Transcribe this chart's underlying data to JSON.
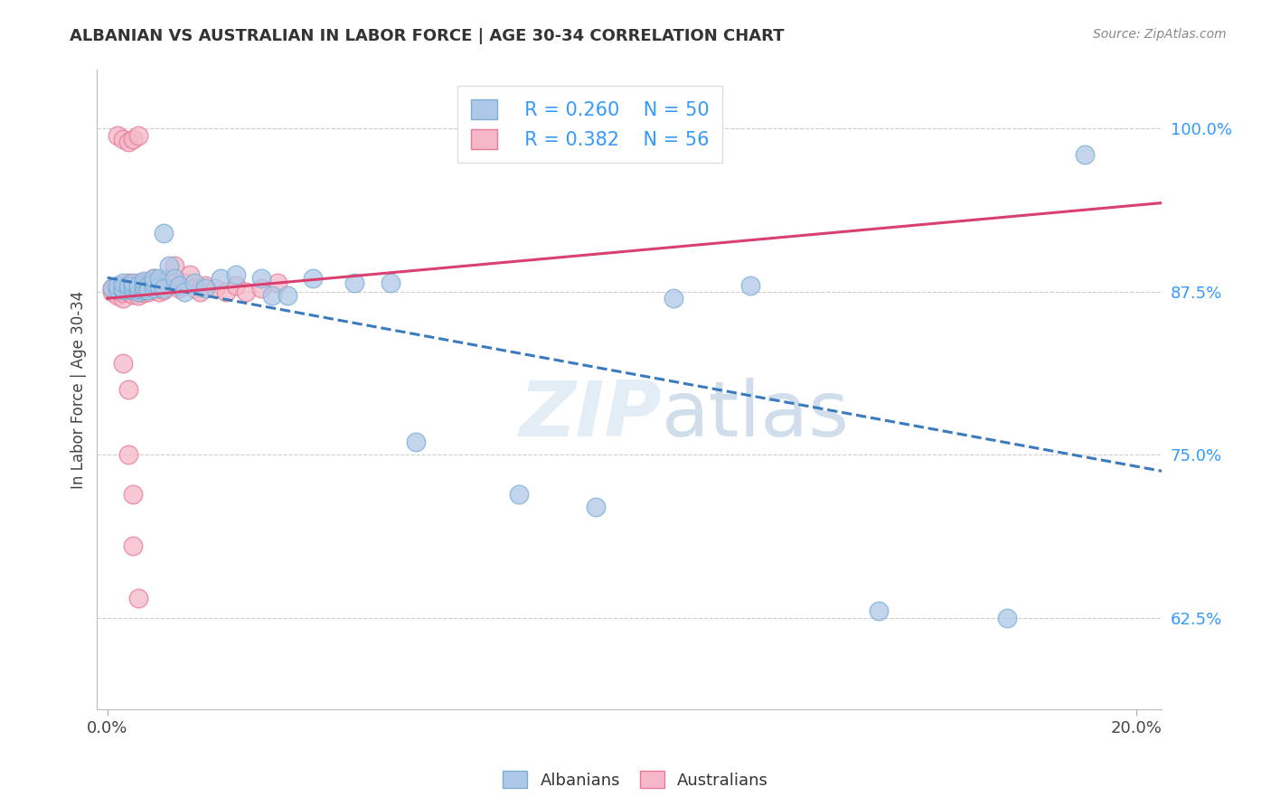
{
  "title": "ALBANIAN VS AUSTRALIAN IN LABOR FORCE | AGE 30-34 CORRELATION CHART",
  "source": "Source: ZipAtlas.com",
  "ylabel": "In Labor Force | Age 30-34",
  "ytick_labels": [
    "62.5%",
    "75.0%",
    "87.5%",
    "100.0%"
  ],
  "ytick_values": [
    0.625,
    0.75,
    0.875,
    1.0
  ],
  "xtick_labels": [
    "0.0%",
    "20.0%"
  ],
  "xtick_values": [
    0.0,
    0.2
  ],
  "xlim": [
    -0.002,
    0.205
  ],
  "ylim": [
    0.555,
    1.045
  ],
  "legend_blue_R": "R = 0.260",
  "legend_blue_N": "N = 50",
  "legend_pink_R": "R = 0.382",
  "legend_pink_N": "N = 56",
  "blue_scatter_color": "#aec8e8",
  "blue_edge_color": "#7aafd4",
  "pink_scatter_color": "#f5b8c8",
  "pink_edge_color": "#e87898",
  "blue_line_color": "#3a7abf",
  "pink_line_color": "#d94070",
  "albanians_x": [
    0.001,
    0.002,
    0.002,
    0.003,
    0.003,
    0.003,
    0.004,
    0.004,
    0.005,
    0.005,
    0.005,
    0.006,
    0.006,
    0.006,
    0.007,
    0.007,
    0.007,
    0.007,
    0.008,
    0.008,
    0.008,
    0.009,
    0.009,
    0.009,
    0.01,
    0.01,
    0.011,
    0.011,
    0.012,
    0.013,
    0.014,
    0.015,
    0.017,
    0.019,
    0.022,
    0.025,
    0.03,
    0.032,
    0.035,
    0.04,
    0.048,
    0.055,
    0.06,
    0.08,
    0.095,
    0.11,
    0.125,
    0.15,
    0.175,
    0.19
  ],
  "albanians_y": [
    0.878,
    0.877,
    0.88,
    0.876,
    0.878,
    0.882,
    0.877,
    0.88,
    0.876,
    0.879,
    0.882,
    0.875,
    0.877,
    0.88,
    0.876,
    0.878,
    0.88,
    0.883,
    0.877,
    0.88,
    0.876,
    0.878,
    0.882,
    0.885,
    0.879,
    0.885,
    0.92,
    0.878,
    0.895,
    0.885,
    0.88,
    0.875,
    0.882,
    0.878,
    0.885,
    0.888,
    0.885,
    0.872,
    0.872,
    0.885,
    0.882,
    0.882,
    0.76,
    0.72,
    0.71,
    0.87,
    0.88,
    0.63,
    0.625,
    0.98
  ],
  "australians_x": [
    0.001,
    0.001,
    0.002,
    0.002,
    0.003,
    0.003,
    0.003,
    0.004,
    0.004,
    0.004,
    0.005,
    0.005,
    0.005,
    0.006,
    0.006,
    0.006,
    0.006,
    0.007,
    0.007,
    0.007,
    0.008,
    0.008,
    0.008,
    0.009,
    0.009,
    0.009,
    0.01,
    0.01,
    0.01,
    0.011,
    0.011,
    0.012,
    0.013,
    0.014,
    0.015,
    0.016,
    0.017,
    0.018,
    0.019,
    0.021,
    0.023,
    0.025,
    0.027,
    0.03,
    0.033,
    0.002,
    0.003,
    0.004,
    0.005,
    0.006,
    0.003,
    0.004,
    0.004,
    0.005,
    0.005,
    0.006
  ],
  "australians_y": [
    0.875,
    0.878,
    0.872,
    0.876,
    0.87,
    0.874,
    0.88,
    0.875,
    0.878,
    0.882,
    0.873,
    0.876,
    0.88,
    0.872,
    0.875,
    0.878,
    0.882,
    0.874,
    0.877,
    0.882,
    0.875,
    0.878,
    0.882,
    0.876,
    0.88,
    0.885,
    0.875,
    0.879,
    0.883,
    0.876,
    0.88,
    0.885,
    0.895,
    0.878,
    0.882,
    0.888,
    0.878,
    0.875,
    0.88,
    0.878,
    0.875,
    0.88,
    0.875,
    0.878,
    0.882,
    0.995,
    0.992,
    0.99,
    0.992,
    0.995,
    0.82,
    0.8,
    0.75,
    0.72,
    0.68,
    0.64
  ],
  "watermark_zip": "ZIP",
  "watermark_atlas": "atlas",
  "background_color": "#ffffff",
  "grid_color": "#cccccc",
  "legend_box_color": "#f0f0f0"
}
